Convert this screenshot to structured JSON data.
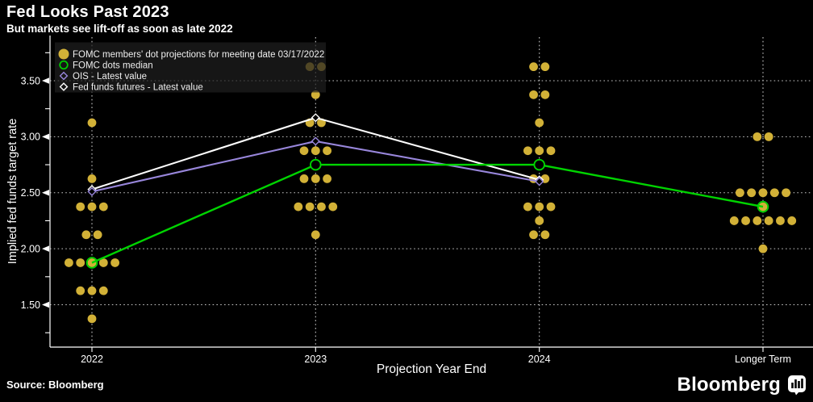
{
  "header": {
    "title": "Fed Looks Past 2023",
    "subtitle": "But markets see lift-off as soon as late 2022"
  },
  "footer": {
    "source": "Source: Bloomberg",
    "brand": "Bloomberg"
  },
  "chart_data": {
    "type": "scatter",
    "description": "FOMC dot plot with median, OIS and fed funds futures overlay lines",
    "xlabel": "Projection Year End",
    "ylabel": "Implied fed funds target rate",
    "x_categories": [
      "2022",
      "2023",
      "2024",
      "Longer Term"
    ],
    "y_ticks": [
      3.5,
      3.0,
      2.5,
      2.0,
      1.5
    ],
    "y_tick_labels": [
      "3.50",
      "3.00",
      "2.50",
      "2.00",
      "1.50"
    ],
    "y_minor_ticks": [
      3.75,
      3.25,
      2.75,
      2.25,
      1.75,
      1.25
    ],
    "ylim": [
      1.2,
      3.9
    ],
    "grid": "dotted horizontal at ticks and dotted vertical at categories",
    "legend_position": "top-left inside plot",
    "colors": {
      "background": "#000000",
      "dots": "#d2b137",
      "median": "#00d400",
      "ois": "#9886db",
      "futures": "#ffffff"
    },
    "legend": [
      {
        "label": "FOMC members' dot projections for meeting date 03/17/2022",
        "marker": "filled-circle",
        "color": "#d2b137"
      },
      {
        "label": "FOMC dots median",
        "marker": "open-circle",
        "color": "#00d400"
      },
      {
        "label": "OIS - Latest value",
        "marker": "open-diamond",
        "color": "#9886db"
      },
      {
        "label": "Fed funds futures - Latest value",
        "marker": "open-diamond",
        "color": "#ffffff"
      }
    ],
    "dot_columns": [
      {
        "category": "2022",
        "rows": [
          {
            "rate": 3.125,
            "count": 1
          },
          {
            "rate": 2.625,
            "count": 1
          },
          {
            "rate": 2.375,
            "count": 3
          },
          {
            "rate": 2.125,
            "count": 2
          },
          {
            "rate": 1.875,
            "count": 5
          },
          {
            "rate": 1.625,
            "count": 3
          },
          {
            "rate": 1.375,
            "count": 1
          }
        ]
      },
      {
        "category": "2023",
        "rows": [
          {
            "rate": 3.625,
            "count": 2
          },
          {
            "rate": 3.375,
            "count": 1
          },
          {
            "rate": 3.125,
            "count": 2
          },
          {
            "rate": 2.875,
            "count": 3
          },
          {
            "rate": 2.625,
            "count": 3
          },
          {
            "rate": 2.375,
            "count": 4
          },
          {
            "rate": 2.125,
            "count": 1
          }
        ]
      },
      {
        "category": "2024",
        "rows": [
          {
            "rate": 3.625,
            "count": 2
          },
          {
            "rate": 3.375,
            "count": 2
          },
          {
            "rate": 3.125,
            "count": 1
          },
          {
            "rate": 2.875,
            "count": 3
          },
          {
            "rate": 2.625,
            "count": 2
          },
          {
            "rate": 2.375,
            "count": 3
          },
          {
            "rate": 2.25,
            "count": 1
          },
          {
            "rate": 2.125,
            "count": 2
          }
        ]
      },
      {
        "category": "Longer Term",
        "rows": [
          {
            "rate": 3.0,
            "count": 2
          },
          {
            "rate": 2.5,
            "count": 5
          },
          {
            "rate": 2.375,
            "count": 1
          },
          {
            "rate": 2.25,
            "count": 6
          },
          {
            "rate": 2.0,
            "count": 1
          }
        ]
      }
    ],
    "series": [
      {
        "name": "Fed funds futures - Latest value",
        "marker": "open-diamond",
        "color": "#ffffff",
        "points": [
          {
            "x": "2022",
            "y": 2.53
          },
          {
            "x": "2023",
            "y": 3.17
          },
          {
            "x": "2024",
            "y": 2.615
          }
        ]
      },
      {
        "name": "OIS - Latest value",
        "marker": "open-diamond",
        "color": "#9886db",
        "points": [
          {
            "x": "2022",
            "y": 2.51
          },
          {
            "x": "2023",
            "y": 2.96
          },
          {
            "x": "2024",
            "y": 2.6
          }
        ]
      },
      {
        "name": "FOMC dots median",
        "marker": "open-circle",
        "color": "#00d400",
        "points": [
          {
            "x": "2022",
            "y": 1.875
          },
          {
            "x": "2023",
            "y": 2.75
          },
          {
            "x": "2024",
            "y": 2.75
          },
          {
            "x": "Longer Term",
            "y": 2.375
          }
        ]
      }
    ]
  }
}
